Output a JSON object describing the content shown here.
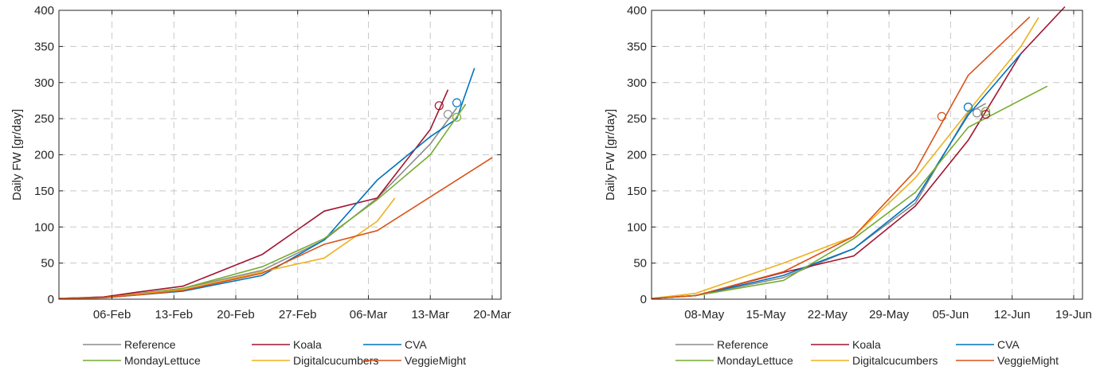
{
  "colors": {
    "Reference": "#8c8c8c",
    "Koala": "#a2142f",
    "CVA": "#0072bd",
    "MondayLettuce": "#77ac30",
    "Digitalcucumbers": "#edb120",
    "VeggieMight": "#d95319"
  },
  "chart_data": [
    {
      "type": "line",
      "ylabel": "Daily FW [gr/day]",
      "xlabel": "",
      "ylim": [
        0,
        400
      ],
      "yticks": [
        0,
        50,
        100,
        150,
        200,
        250,
        300,
        350,
        400
      ],
      "xlim": [
        "2024-01-31",
        "2024-03-21"
      ],
      "xticks": [
        {
          "date": "2024-02-06",
          "label": "06-Feb"
        },
        {
          "date": "2024-02-13",
          "label": "13-Feb"
        },
        {
          "date": "2024-02-20",
          "label": "20-Feb"
        },
        {
          "date": "2024-02-27",
          "label": "27-Feb"
        },
        {
          "date": "2024-03-06",
          "label": "06-Mar"
        },
        {
          "date": "2024-03-13",
          "label": "13-Mar"
        },
        {
          "date": "2024-03-20",
          "label": "20-Mar"
        }
      ],
      "grid": true,
      "legend_position": "bottom",
      "series": [
        {
          "name": "Reference",
          "x": [
            "2024-01-31",
            "2024-02-05",
            "2024-02-09",
            "2024-02-14",
            "2024-02-23",
            "2024-03-01",
            "2024-03-07",
            "2024-03-13",
            "2024-03-16"
          ],
          "y": [
            1,
            3,
            8,
            15,
            40,
            82,
            140,
            215,
            265
          ],
          "marker": {
            "x": "2024-03-15",
            "y": 256
          }
        },
        {
          "name": "Koala",
          "x": [
            "2024-01-31",
            "2024-02-05",
            "2024-02-09",
            "2024-02-14",
            "2024-02-23",
            "2024-03-01",
            "2024-03-07",
            "2024-03-13",
            "2024-03-15"
          ],
          "y": [
            1,
            3,
            10,
            18,
            62,
            122,
            140,
            235,
            290
          ],
          "marker": {
            "x": "2024-03-14",
            "y": 268
          }
        },
        {
          "name": "CVA",
          "x": [
            "2024-01-31",
            "2024-02-05",
            "2024-02-09",
            "2024-02-14",
            "2024-02-23",
            "2024-03-01",
            "2024-03-07",
            "2024-03-13",
            "2024-03-16",
            "2024-03-18"
          ],
          "y": [
            1,
            2,
            6,
            11,
            33,
            82,
            165,
            225,
            250,
            320
          ],
          "marker": {
            "x": "2024-03-16",
            "y": 272
          }
        },
        {
          "name": "MondayLettuce",
          "x": [
            "2024-01-31",
            "2024-02-05",
            "2024-02-09",
            "2024-02-14",
            "2024-02-23",
            "2024-03-01",
            "2024-03-07",
            "2024-03-13",
            "2024-03-15",
            "2024-03-17"
          ],
          "y": [
            1,
            2,
            7,
            15,
            45,
            84,
            138,
            200,
            235,
            270
          ],
          "marker": {
            "x": "2024-03-16",
            "y": 252
          }
        },
        {
          "name": "Digitalcucumbers",
          "x": [
            "2024-01-31",
            "2024-02-05",
            "2024-02-09",
            "2024-02-14",
            "2024-02-23",
            "2024-03-01",
            "2024-03-07",
            "2024-03-09"
          ],
          "y": [
            1,
            2,
            7,
            13,
            38,
            57,
            108,
            140
          ]
        },
        {
          "name": "VeggieMight",
          "x": [
            "2024-01-31",
            "2024-02-05",
            "2024-02-09",
            "2024-02-14",
            "2024-02-23",
            "2024-03-01",
            "2024-03-07",
            "2024-03-20"
          ],
          "y": [
            1,
            2,
            6,
            12,
            36,
            76,
            95,
            196
          ]
        }
      ]
    },
    {
      "type": "line",
      "ylabel": "Daily FW [gr/day]",
      "xlabel": "",
      "ylim": [
        0,
        400
      ],
      "yticks": [
        0,
        50,
        100,
        150,
        200,
        250,
        300,
        350,
        400
      ],
      "xlim": [
        "2024-05-02",
        "2024-06-20"
      ],
      "xticks": [
        {
          "date": "2024-05-08",
          "label": "08-May"
        },
        {
          "date": "2024-05-15",
          "label": "15-May"
        },
        {
          "date": "2024-05-22",
          "label": "22-May"
        },
        {
          "date": "2024-05-29",
          "label": "29-May"
        },
        {
          "date": "2024-06-05",
          "label": "05-Jun"
        },
        {
          "date": "2024-06-12",
          "label": "12-Jun"
        },
        {
          "date": "2024-06-19",
          "label": "19-Jun"
        }
      ],
      "grid": true,
      "legend_position": "bottom",
      "series": [
        {
          "name": "Reference",
          "x": [
            "2024-05-02",
            "2024-05-07",
            "2024-05-17",
            "2024-05-25",
            "2024-06-01",
            "2024-06-07",
            "2024-06-09"
          ],
          "y": [
            1,
            5,
            30,
            70,
            133,
            258,
            271
          ],
          "marker": {
            "x": "2024-06-08",
            "y": 258
          }
        },
        {
          "name": "Koala",
          "x": [
            "2024-05-02",
            "2024-05-07",
            "2024-05-17",
            "2024-05-25",
            "2024-06-01",
            "2024-06-07",
            "2024-06-13",
            "2024-06-18"
          ],
          "y": [
            1,
            5,
            37,
            60,
            129,
            220,
            340,
            405
          ],
          "marker": {
            "x": "2024-06-09",
            "y": 256
          }
        },
        {
          "name": "CVA",
          "x": [
            "2024-05-02",
            "2024-05-07",
            "2024-05-17",
            "2024-05-25",
            "2024-06-01",
            "2024-06-07",
            "2024-06-13"
          ],
          "y": [
            1,
            5,
            33,
            70,
            138,
            255,
            340
          ],
          "marker": {
            "x": "2024-06-07",
            "y": 266
          }
        },
        {
          "name": "MondayLettuce",
          "x": [
            "2024-05-02",
            "2024-05-07",
            "2024-05-17",
            "2024-05-25",
            "2024-06-01",
            "2024-06-07",
            "2024-06-16"
          ],
          "y": [
            1,
            5,
            26,
            84,
            148,
            238,
            295
          ],
          "marker": {
            "x": "2024-06-09",
            "y": 260
          }
        },
        {
          "name": "Digitalcucumbers",
          "x": [
            "2024-05-02",
            "2024-05-07",
            "2024-05-17",
            "2024-05-25",
            "2024-06-01",
            "2024-06-07",
            "2024-06-13",
            "2024-06-15"
          ],
          "y": [
            1,
            8,
            50,
            87,
            168,
            260,
            350,
            390
          ]
        },
        {
          "name": "VeggieMight",
          "x": [
            "2024-05-02",
            "2024-05-07",
            "2024-05-17",
            "2024-05-25",
            "2024-06-01",
            "2024-06-07",
            "2024-06-14"
          ],
          "y": [
            1,
            5,
            38,
            87,
            178,
            310,
            391
          ],
          "marker": {
            "x": "2024-06-04",
            "y": 253
          }
        }
      ]
    }
  ],
  "legend": [
    "Reference",
    "Koala",
    "CVA",
    "MondayLettuce",
    "Digitalcucumbers",
    "VeggieMight"
  ]
}
